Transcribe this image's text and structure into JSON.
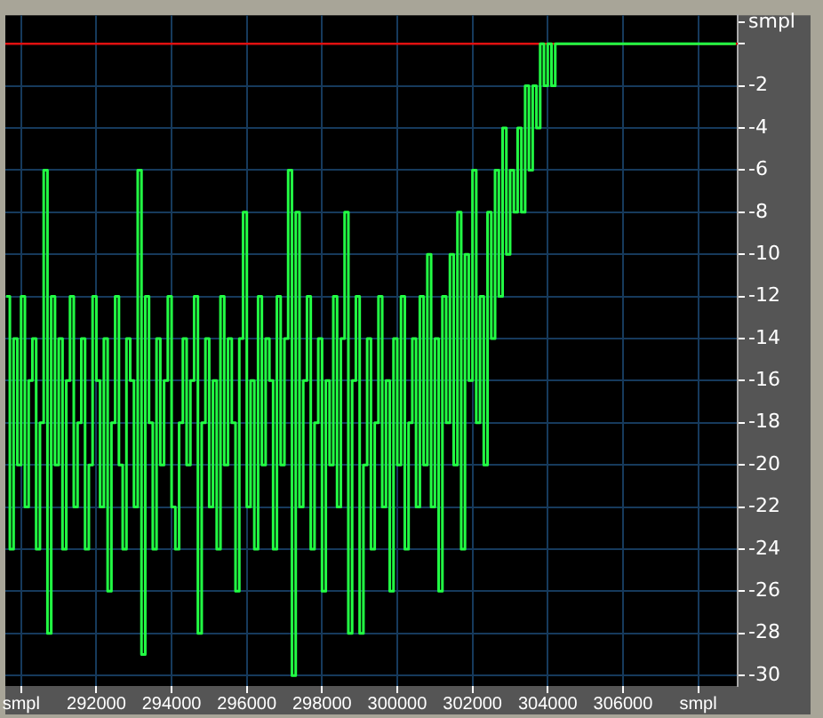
{
  "chart_data": {
    "type": "step",
    "legend": false,
    "grid": true,
    "marker": "none",
    "xlim": [
      289580,
      309050
    ],
    "ylim": [
      -30.5,
      1.35
    ],
    "xticks": [
      {
        "value": 290000,
        "label": "smpl"
      },
      292000,
      294000,
      296000,
      298000,
      300000,
      302000,
      304000,
      306000,
      {
        "value": 308000,
        "label": "smpl"
      }
    ],
    "yticks": [
      {
        "value": 1,
        "label": "smpl"
      },
      {
        "value": 0,
        "label": null
      },
      -2,
      -4,
      -6,
      -8,
      -10,
      -12,
      -14,
      -16,
      -18,
      -20,
      -22,
      -24,
      -26,
      -28,
      -30
    ],
    "ref_lines": [
      {
        "axis": "y",
        "value": 0,
        "color": "#e01010"
      }
    ],
    "series": [
      {
        "color": "#22ff44",
        "x": [
          289600,
          289700,
          289800,
          289900,
          290000,
          290100,
          290200,
          290300,
          290400,
          290500,
          290600,
          290700,
          290800,
          290900,
          291000,
          291100,
          291200,
          291300,
          291400,
          291500,
          291600,
          291700,
          291800,
          291900,
          292000,
          292100,
          292200,
          292300,
          292400,
          292500,
          292600,
          292700,
          292800,
          292900,
          293000,
          293100,
          293200,
          293300,
          293400,
          293500,
          293600,
          293700,
          293800,
          293900,
          294000,
          294100,
          294200,
          294300,
          294400,
          294500,
          294600,
          294700,
          294800,
          294900,
          295000,
          295100,
          295200,
          295300,
          295400,
          295500,
          295600,
          295700,
          295800,
          295900,
          296000,
          296100,
          296200,
          296300,
          296400,
          296500,
          296600,
          296700,
          296800,
          296900,
          297000,
          297100,
          297200,
          297300,
          297400,
          297500,
          297600,
          297700,
          297800,
          297900,
          298000,
          298100,
          298200,
          298300,
          298400,
          298500,
          298600,
          298700,
          298800,
          298900,
          299000,
          299100,
          299200,
          299300,
          299400,
          299500,
          299600,
          299700,
          299800,
          299900,
          300000,
          300100,
          300200,
          300300,
          300400,
          300500,
          300600,
          300700,
          300800,
          300900,
          301000,
          301100,
          301200,
          301300,
          301400,
          301500,
          301600,
          301700,
          301800,
          301900,
          302000,
          302100,
          302200,
          302300,
          302400,
          302500,
          302600,
          302700,
          302800,
          302900,
          303000,
          303100,
          303200,
          303300,
          303400,
          303500,
          303600,
          303700,
          303800,
          303900,
          304000,
          304100,
          304200,
          309000
        ],
        "values": [
          -12,
          -24,
          -14,
          -20,
          -12,
          -22,
          -16,
          -14,
          -24,
          -18,
          -6,
          -28,
          -12,
          -20,
          -14,
          -24,
          -16,
          -12,
          -22,
          -18,
          -14,
          -24,
          -20,
          -12,
          -16,
          -22,
          -14,
          -26,
          -18,
          -12,
          -20,
          -24,
          -14,
          -16,
          -22,
          -6,
          -29,
          -12,
          -18,
          -24,
          -14,
          -20,
          -16,
          -12,
          -22,
          -24,
          -18,
          -14,
          -20,
          -16,
          -12,
          -28,
          -18,
          -14,
          -22,
          -16,
          -24,
          -12,
          -20,
          -14,
          -18,
          -26,
          -14,
          -8,
          -22,
          -16,
          -24,
          -12,
          -20,
          -14,
          -16,
          -24,
          -12,
          -20,
          -14,
          -6,
          -30,
          -8,
          -22,
          -16,
          -12,
          -24,
          -18,
          -14,
          -26,
          -16,
          -20,
          -12,
          -22,
          -14,
          -8,
          -28,
          -16,
          -12,
          -28,
          -20,
          -14,
          -24,
          -18,
          -12,
          -22,
          -16,
          -26,
          -14,
          -20,
          -12,
          -24,
          -18,
          -14,
          -22,
          -12,
          -20,
          -10,
          -22,
          -14,
          -26,
          -12,
          -18,
          -10,
          -20,
          -8,
          -24,
          -10,
          -16,
          -6,
          -18,
          -12,
          -20,
          -8,
          -14,
          -6,
          -12,
          -4,
          -10,
          -6,
          -8,
          -4,
          -8,
          -2,
          -6,
          -2,
          -4,
          0,
          -2,
          0,
          -2,
          0,
          0
        ]
      }
    ]
  }
}
